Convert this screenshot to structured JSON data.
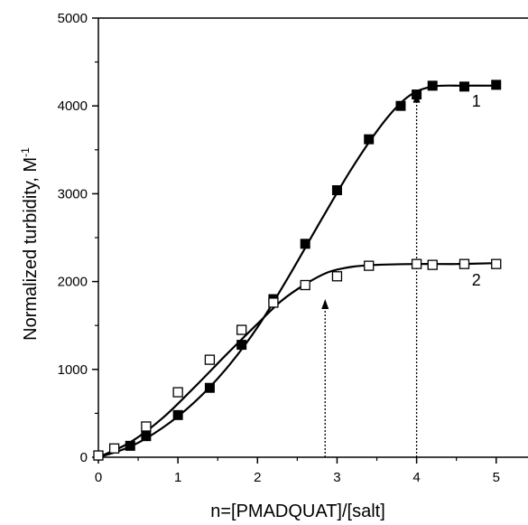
{
  "chart_data": {
    "type": "scatter",
    "xlabel": "n=[PMADQUAT]/[salt]",
    "ylabel": "Normalized turbidity, M",
    "ylabel_superscript": "-1",
    "xlim": [
      0,
      5.4
    ],
    "ylim": [
      0,
      5000
    ],
    "xticks": [
      "0",
      "1",
      "2",
      "3",
      "4",
      "5"
    ],
    "yticks": [
      "0",
      "1000",
      "2000",
      "3000",
      "4000",
      "5000"
    ],
    "grid": false,
    "series": [
      {
        "name": "1",
        "marker": "filled-square",
        "x": [
          0,
          0.4,
          0.6,
          1.0,
          1.4,
          1.8,
          2.2,
          2.6,
          3.0,
          3.4,
          3.8,
          4.0,
          4.2,
          4.6,
          5.0
        ],
        "y": [
          20,
          130,
          240,
          480,
          790,
          1280,
          1800,
          2430,
          3040,
          3620,
          4000,
          4130,
          4230,
          4220,
          4240
        ],
        "curve_x": [
          0,
          0.4,
          0.8,
          1.2,
          1.6,
          2.0,
          2.4,
          2.8,
          3.2,
          3.6,
          3.9,
          4.2,
          4.6,
          5.0
        ],
        "curve_y": [
          0,
          120,
          330,
          620,
          1000,
          1480,
          2070,
          2700,
          3310,
          3830,
          4110,
          4220,
          4230,
          4230
        ],
        "arrow_x": 4.0,
        "arrow_to_y": 4150
      },
      {
        "name": "2",
        "marker": "open-square",
        "x": [
          0,
          0.2,
          0.6,
          1.0,
          1.4,
          1.8,
          2.2,
          2.6,
          3.0,
          3.4,
          4.0,
          4.2,
          4.6,
          5.0
        ],
        "y": [
          20,
          100,
          350,
          740,
          1110,
          1450,
          1760,
          1960,
          2060,
          2180,
          2200,
          2190,
          2200,
          2200
        ],
        "curve_x": [
          0,
          0.4,
          0.8,
          1.2,
          1.6,
          2.0,
          2.3,
          2.6,
          2.9,
          3.2,
          3.5,
          4.0,
          4.5,
          5.0
        ],
        "curve_y": [
          0,
          170,
          440,
          790,
          1160,
          1520,
          1780,
          1970,
          2110,
          2170,
          2190,
          2200,
          2200,
          2210
        ],
        "arrow_x": 2.85,
        "arrow_to_y": 1800
      }
    ]
  }
}
